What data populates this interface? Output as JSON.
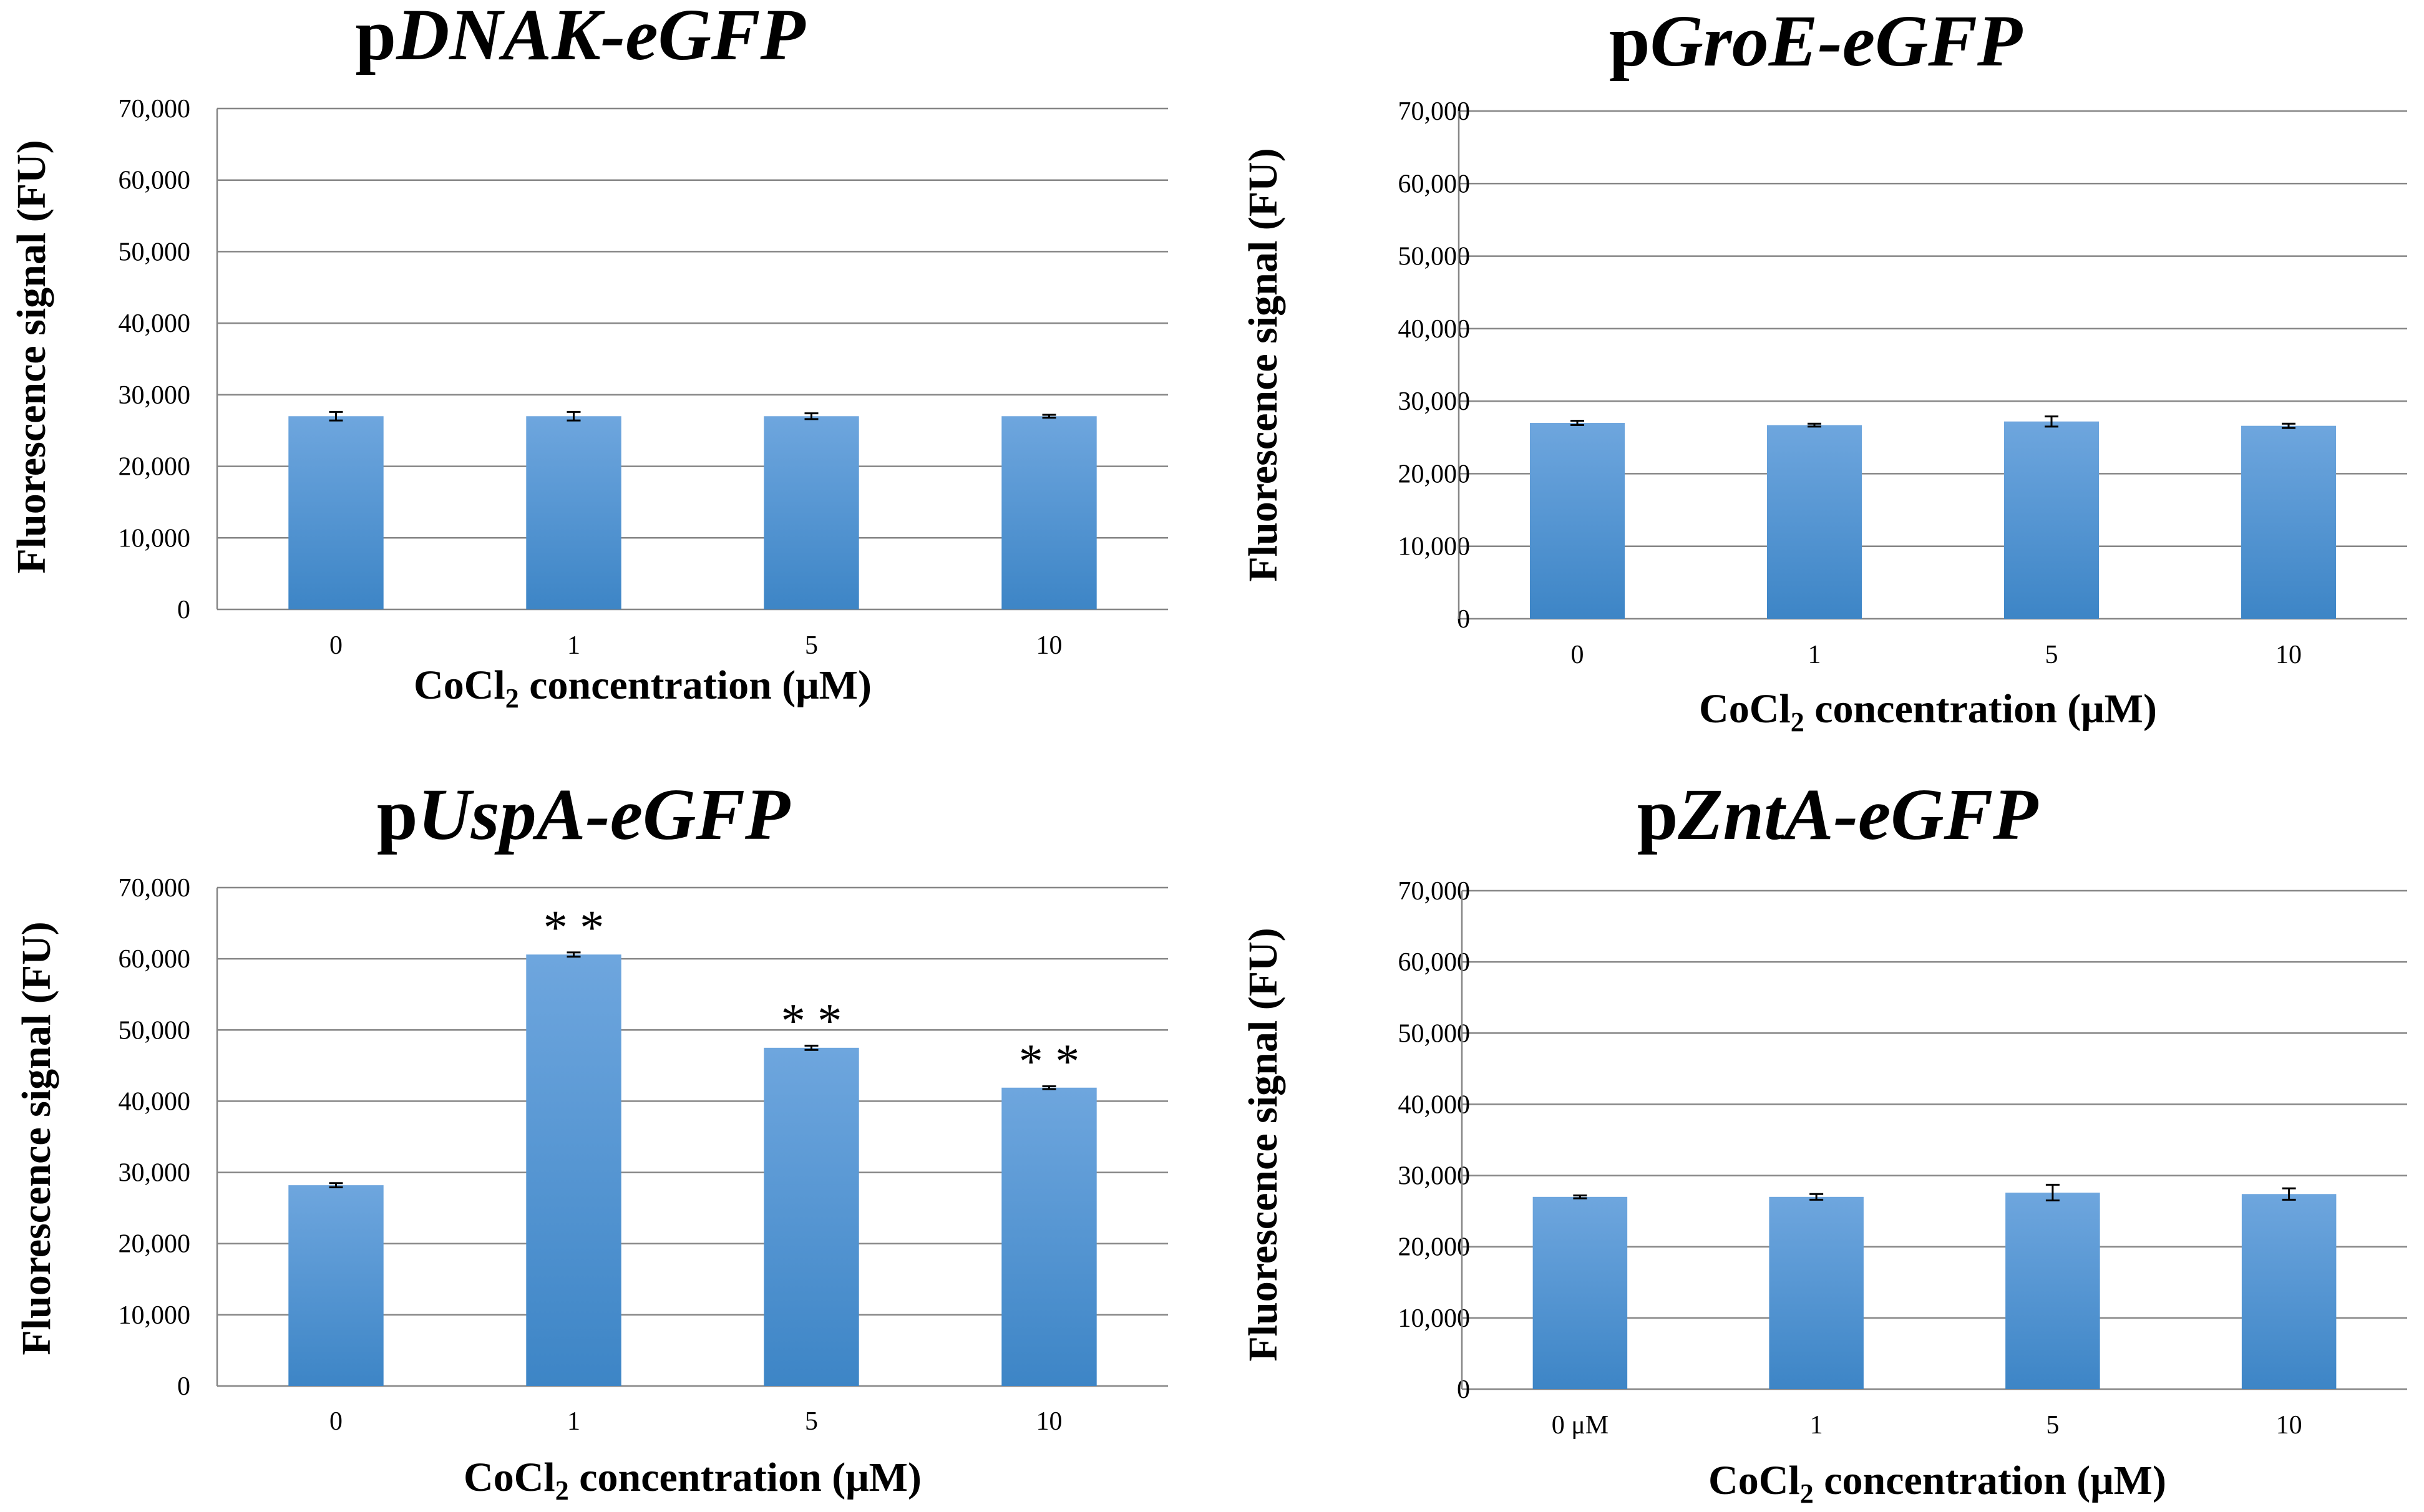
{
  "chart_data": [
    {
      "type": "bar",
      "title_prefix": "p",
      "title_gene": "DNAK-eGFP",
      "xlabel_parts": [
        "CoCl",
        "2",
        " concentration (μM)"
      ],
      "ylabel": "Fluorescence signal (FU)",
      "categories": [
        "0",
        "1",
        "5",
        "10"
      ],
      "values": [
        27000,
        27000,
        27000,
        27000
      ],
      "errors": [
        600,
        600,
        400,
        200
      ],
      "annotations": [
        "",
        "",
        "",
        ""
      ],
      "ylim": [
        0,
        70000
      ],
      "yticks": [
        0,
        10000,
        20000,
        30000,
        40000,
        50000,
        60000,
        70000
      ],
      "ytick_labels": [
        "0",
        "10,000",
        "20,000",
        "30,000",
        "40,000",
        "50,000",
        "60,000",
        "70,000"
      ],
      "bar_color": "#5b9bd5"
    },
    {
      "type": "bar",
      "title_prefix": "p",
      "title_gene": "GroE-eGFP",
      "xlabel_parts": [
        "CoCl",
        "2",
        " concentration (μM)"
      ],
      "ylabel": "Fluorescence signal (FU)",
      "categories": [
        "0",
        "1",
        "5",
        "10"
      ],
      "values": [
        27000,
        26700,
        27200,
        26600
      ],
      "errors": [
        300,
        200,
        700,
        300
      ],
      "annotations": [
        "",
        "",
        "",
        ""
      ],
      "ylim": [
        0,
        70000
      ],
      "yticks": [
        0,
        10000,
        20000,
        30000,
        40000,
        50000,
        60000,
        70000
      ],
      "ytick_labels": [
        "0",
        "10,000",
        "20,000",
        "30,000",
        "40,000",
        "50,000",
        "60,000",
        "70,000"
      ],
      "bar_color": "#5b9bd5"
    },
    {
      "type": "bar",
      "title_prefix": "p",
      "title_gene": "UspA-eGFP",
      "xlabel_parts": [
        "CoCl",
        "2",
        " concentration (μM)"
      ],
      "ylabel": "Fluorescence signal (FU)",
      "categories": [
        "0",
        "1",
        "5",
        "10"
      ],
      "values": [
        28200,
        60600,
        47500,
        41900
      ],
      "errors": [
        300,
        300,
        300,
        200
      ],
      "annotations": [
        "",
        "**",
        "**",
        "**"
      ],
      "ylim": [
        0,
        70000
      ],
      "yticks": [
        0,
        10000,
        20000,
        30000,
        40000,
        50000,
        60000,
        70000
      ],
      "ytick_labels": [
        "0",
        "10,000",
        "20,000",
        "30,000",
        "40,000",
        "50,000",
        "60,000",
        "70,000"
      ],
      "bar_color": "#5b9bd5"
    },
    {
      "type": "bar",
      "title_prefix": "p",
      "title_gene": "ZntA-eGFP",
      "xlabel_parts": [
        "CoCl",
        "2",
        " concentration (μM)"
      ],
      "ylabel": "Fluorescence signal (FU)",
      "categories": [
        "0 μM",
        "1",
        "5",
        "10"
      ],
      "values": [
        27000,
        27000,
        27600,
        27400
      ],
      "errors": [
        200,
        400,
        1100,
        800
      ],
      "annotations": [
        "",
        "",
        "",
        ""
      ],
      "ylim": [
        0,
        70000
      ],
      "yticks": [
        0,
        10000,
        20000,
        30000,
        40000,
        50000,
        60000,
        70000
      ],
      "ytick_labels": [
        "0",
        "10,000",
        "20,000",
        "30,000",
        "40,000",
        "50,000",
        "60,000",
        "70,000"
      ],
      "bar_color": "#5b9bd5"
    }
  ]
}
